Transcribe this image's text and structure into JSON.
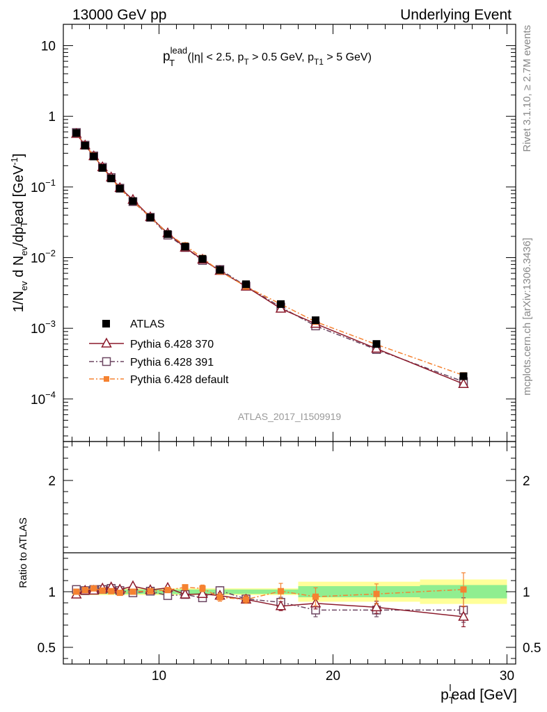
{
  "header": {
    "left": "13000 GeV pp",
    "right": "Underlying Event"
  },
  "side_labels": {
    "rivet": "Rivet 3.1.10, ≥ 2.7M events",
    "mcplots": "mcplots.cern.ch [arXiv:1306.3436]"
  },
  "colors": {
    "atlas": "#000000",
    "p370": "#8b1a2b",
    "p391": "#6b4560",
    "pdef": "#f58231",
    "band_inner": "#90ee90",
    "band_outer": "#ffff99"
  },
  "chart_data": [
    {
      "type": "line",
      "panel": "main",
      "title": {
        "p": "p",
        "sup": "lead",
        "sub": "T",
        "part1": " (|η| < 2.5, p",
        "sub2": "T",
        "part2": " > 0.5 GeV, p",
        "sub3": "T1",
        "part3": " > 5 GeV)"
      },
      "watermark": "ATLAS_2017_I1509919",
      "ylabel": {
        "a": "1/N",
        "a_sub": "ev",
        "b": " d N",
        "b_sub": "ev",
        "c": "/dp",
        "c_sub": "T",
        "c_sup": "l",
        "d": "ead [GeV",
        "d_sup": "-1",
        "e": "]"
      },
      "yscale": "log",
      "ylim": [
        2.5e-05,
        20
      ],
      "xlim": [
        4.5,
        30.5
      ],
      "y_tick_labels": [
        {
          "v": 10,
          "base": "10",
          "exp": ""
        },
        {
          "v": 1,
          "base": "1",
          "exp": ""
        },
        {
          "v": 0.1,
          "base": "10",
          "exp": "−1"
        },
        {
          "v": 0.01,
          "base": "10",
          "exp": "−2"
        },
        {
          "v": 0.001,
          "base": "10",
          "exp": "−3"
        },
        {
          "v": 0.0001,
          "base": "10",
          "exp": "−4"
        }
      ],
      "legend": {
        "position": "lower-left",
        "entries": [
          {
            "label": "ATLAS",
            "series": "atlas"
          },
          {
            "label": "Pythia 6.428 370",
            "series": "p370"
          },
          {
            "label": "Pythia 6.428 391",
            "series": "p391"
          },
          {
            "label": "Pythia 6.428 default",
            "series": "pdef"
          }
        ]
      },
      "x": [
        5.25,
        5.75,
        6.25,
        6.75,
        7.25,
        7.75,
        8.5,
        9.5,
        10.5,
        11.5,
        12.5,
        13.5,
        15,
        17,
        19,
        22.5,
        27.5
      ],
      "series": [
        {
          "name": "ATLAS",
          "key": "atlas",
          "values": [
            0.58,
            0.385,
            0.27,
            0.186,
            0.132,
            0.095,
            0.063,
            0.037,
            0.0215,
            0.0143,
            0.0096,
            0.0067,
            0.0042,
            0.0022,
            0.0013,
            0.0006,
            0.00021
          ]
        },
        {
          "name": "Pythia 6.428 370",
          "key": "p370",
          "values": [
            0.565,
            0.388,
            0.273,
            0.191,
            0.137,
            0.097,
            0.066,
            0.0375,
            0.0222,
            0.0139,
            0.0094,
            0.0065,
            0.0039,
            0.0019,
            0.00116,
            0.000516,
            0.000163
          ]
        },
        {
          "name": "Pythia 6.428 391",
          "key": "p391",
          "values": [
            0.59,
            0.39,
            0.275,
            0.19,
            0.136,
            0.096,
            0.062,
            0.0372,
            0.0208,
            0.0139,
            0.0091,
            0.0068,
            0.00395,
            0.002,
            0.00108,
            0.0005,
            0.000176
          ]
        },
        {
          "name": "Pythia 6.428 default",
          "key": "pdef",
          "values": [
            0.575,
            0.39,
            0.278,
            0.188,
            0.133,
            0.095,
            0.063,
            0.0373,
            0.0219,
            0.0149,
            0.0099,
            0.0064,
            0.0039,
            0.0022,
            0.00124,
            0.00059,
            0.000216
          ]
        }
      ]
    },
    {
      "type": "line",
      "panel": "ratio",
      "ylabel": "Ratio to ATLAS",
      "xlabel": {
        "a": "p",
        "sub": "T",
        "sup": "l",
        "b": "ead [GeV]"
      },
      "ylim": [
        0.35,
        2.35
      ],
      "xlim": [
        4.5,
        30.5
      ],
      "x_tick_labels": [
        10,
        20,
        30
      ],
      "y_tick_labels": [
        {
          "v": 2,
          "t": "2"
        },
        {
          "v": 1,
          "t": "1"
        },
        {
          "v": 0.5,
          "t": "0.5"
        }
      ],
      "bands": [
        {
          "x": [
            5,
            18
          ],
          "inner": 0.02,
          "outer": 0.03
        },
        {
          "x": [
            18,
            25
          ],
          "inner": 0.05,
          "outer": 0.09
        },
        {
          "x": [
            25,
            30
          ],
          "inner": 0.06,
          "outer": 0.11
        }
      ],
      "x": [
        5.25,
        5.75,
        6.25,
        6.75,
        7.25,
        7.75,
        8.5,
        9.5,
        10.5,
        11.5,
        12.5,
        13.5,
        15,
        17,
        19,
        22.5,
        27.5
      ],
      "series": [
        {
          "name": "Pythia 6.428 370",
          "key": "p370",
          "values": [
            0.975,
            1.01,
            1.01,
            1.03,
            1.04,
            1.02,
            1.05,
            1.015,
            1.035,
            0.975,
            0.98,
            0.965,
            0.93,
            0.87,
            0.895,
            0.86,
            0.775
          ],
          "errors": [
            0.012,
            0.012,
            0.012,
            0.012,
            0.012,
            0.014,
            0.014,
            0.016,
            0.018,
            0.02,
            0.022,
            0.024,
            0.03,
            0.04,
            0.05,
            0.055,
            0.09
          ]
        },
        {
          "name": "Pythia 6.428 391",
          "key": "p391",
          "values": [
            1.02,
            1.01,
            1.02,
            1.02,
            1.03,
            1.01,
            0.99,
            1.005,
            0.965,
            0.975,
            0.945,
            1.01,
            0.935,
            0.905,
            0.835,
            0.835,
            0.835
          ],
          "errors": [
            0.012,
            0.012,
            0.012,
            0.012,
            0.012,
            0.014,
            0.014,
            0.016,
            0.02,
            0.022,
            0.03,
            0.035,
            0.035,
            0.045,
            0.06,
            0.06,
            0.11
          ]
        },
        {
          "name": "Pythia 6.428 default",
          "key": "pdef",
          "values": [
            1.0,
            1.015,
            1.03,
            1.01,
            1.005,
            0.99,
            1.0,
            1.005,
            1.015,
            1.04,
            1.03,
            0.95,
            0.93,
            1.005,
            0.955,
            0.98,
            1.02
          ],
          "errors": [
            0.012,
            0.012,
            0.012,
            0.012,
            0.012,
            0.014,
            0.014,
            0.016,
            0.02,
            0.022,
            0.03,
            0.035,
            0.035,
            0.07,
            0.08,
            0.09,
            0.15
          ]
        }
      ]
    }
  ]
}
